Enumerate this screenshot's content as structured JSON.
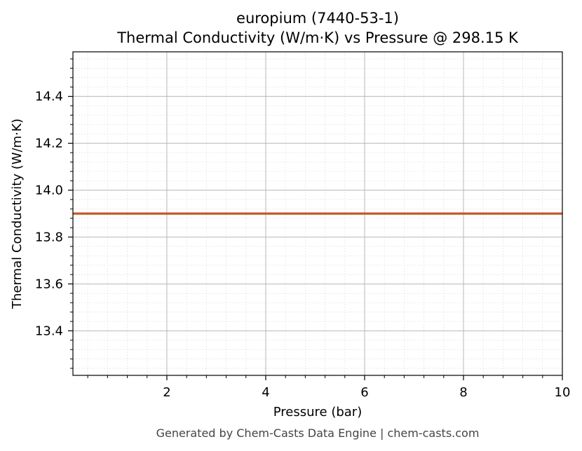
{
  "chart_data": {
    "type": "line",
    "title_line1": "europium (7440-53-1)",
    "title_line2": "Thermal Conductivity (W/m·K) vs Pressure @ 298.15 K",
    "xlabel": "Pressure (bar)",
    "ylabel": "Thermal Conductivity (W/m·K)",
    "xlim": [
      0.1,
      10
    ],
    "ylim": [
      13.21,
      14.59
    ],
    "xticks": [
      2,
      4,
      6,
      8,
      10
    ],
    "yticks": [
      13.4,
      13.6,
      13.8,
      14.0,
      14.2,
      14.4
    ],
    "ytick_labels": [
      "13.4",
      "13.6",
      "13.8",
      "14.0",
      "14.2",
      "14.4"
    ],
    "grid": true,
    "series": [
      {
        "x": [
          0.1,
          10
        ],
        "y": [
          13.9,
          13.9
        ],
        "color": "#c8552a"
      }
    ]
  },
  "footer": "Generated by Chem-Casts Data Engine | chem-casts.com"
}
